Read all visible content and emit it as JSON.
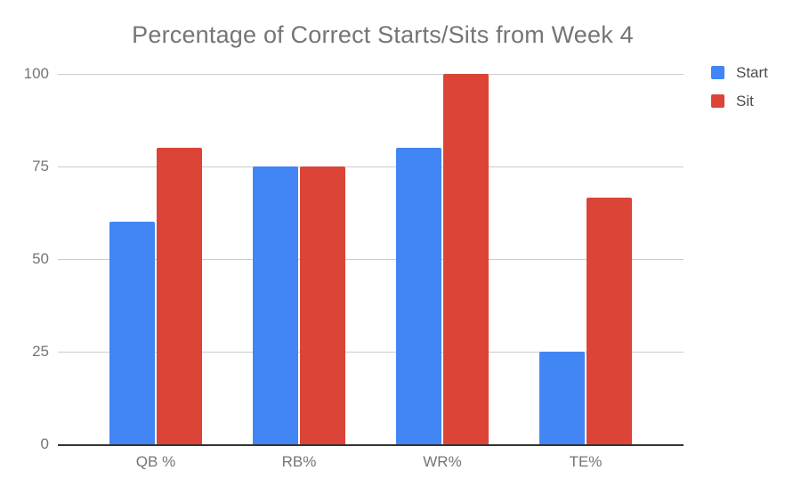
{
  "chart_data": {
    "type": "bar",
    "title": "Percentage of Correct Starts/Sits from Week 4",
    "categories": [
      "QB %",
      "RB%",
      "WR%",
      "TE%"
    ],
    "series": [
      {
        "name": "Start",
        "color": "#4285f4",
        "values": [
          60,
          75,
          80,
          25
        ]
      },
      {
        "name": "Sit",
        "color": "#db4437",
        "values": [
          80,
          75,
          100,
          66.7
        ]
      }
    ],
    "xlabel": "",
    "ylabel": "",
    "ylim": [
      0,
      100
    ],
    "yticks": [
      0,
      25,
      50,
      75,
      100
    ],
    "grid": true,
    "legend_position": "right"
  },
  "colors": {
    "background": "#ffffff",
    "title_text": "#757575",
    "axis_text": "#757575",
    "legend_text": "#4c4c4c",
    "gridline": "#cccccc",
    "baseline": "#333333",
    "series_start": "#4285f4",
    "series_sit": "#db4437"
  }
}
